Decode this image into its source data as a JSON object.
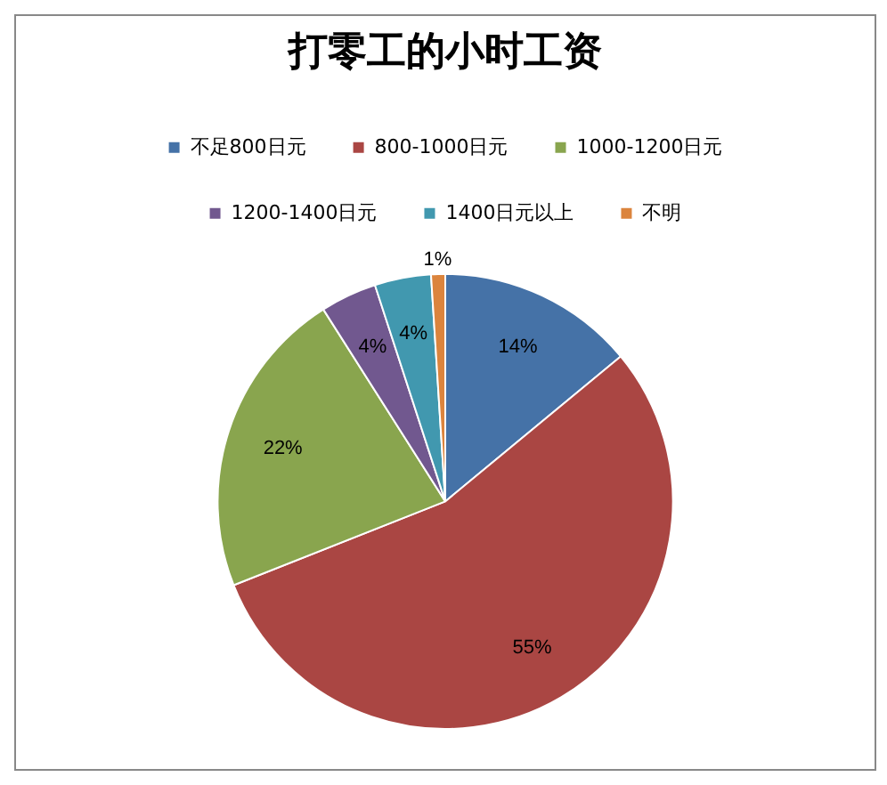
{
  "chart_data": {
    "type": "pie",
    "title": "打零工的小时工资",
    "categories": [
      "不足800日元",
      "800-1000日元",
      "1000-1200日元",
      "1200-1400日元",
      "1400日元以上",
      "不明"
    ],
    "values": [
      14,
      55,
      22,
      4,
      4,
      1
    ],
    "colors": [
      "#4572a7",
      "#aa4643",
      "#89a54e",
      "#71588f",
      "#4198af",
      "#db843d"
    ],
    "value_labels": [
      "14%",
      "55%",
      "22%",
      "4%",
      "4%",
      "1%"
    ],
    "legend": "top"
  }
}
